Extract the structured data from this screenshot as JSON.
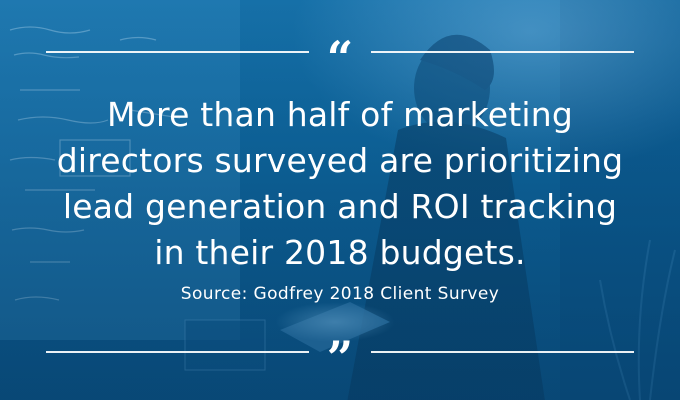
{
  "quote": {
    "lines": [
      "More than half of marketing",
      "directors surveyed are prioritizing",
      "lead generation and ROI tracking",
      "in their 2018 budgets."
    ],
    "open_mark": "“",
    "close_mark": "”"
  },
  "source": "Source: Godfrey 2018 Client Survey",
  "colors": {
    "background": "#0e679f",
    "text": "#ffffff"
  }
}
